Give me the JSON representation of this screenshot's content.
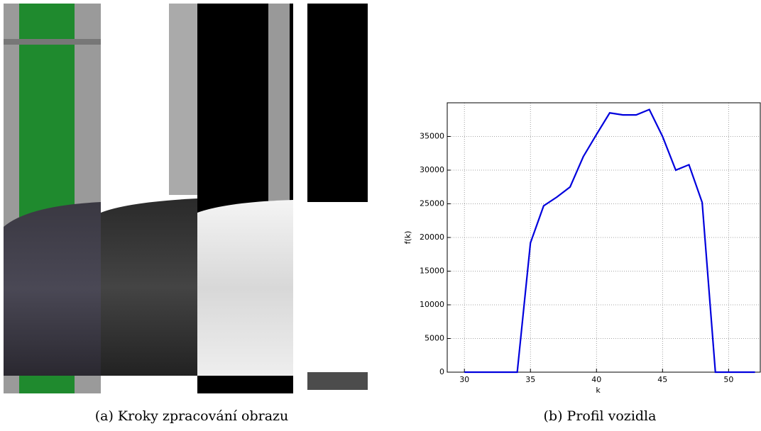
{
  "figure": {
    "caption_a": "(a) Kroky zpracování obrazu",
    "caption_b": "(b) Profil vozidla"
  },
  "chart_data": {
    "type": "line",
    "x_label": "k",
    "y_label": "f(k)",
    "x": [
      30,
      31,
      32,
      33,
      34,
      35,
      36,
      37,
      38,
      39,
      40,
      41,
      42,
      43,
      44,
      45,
      46,
      47,
      48,
      49,
      50,
      51,
      52
    ],
    "series": [
      {
        "name": "f(k)",
        "color": "#0000dd",
        "values": [
          0,
          0,
          0,
          0,
          0,
          19200,
          24700,
          26000,
          27500,
          32000,
          35300,
          38500,
          38200,
          38200,
          39000,
          35000,
          30000,
          30800,
          25200,
          0,
          0,
          0,
          0
        ]
      }
    ],
    "xlim": [
      28.7,
      52.4
    ],
    "ylim": [
      0,
      40000
    ],
    "xticks": [
      30,
      35,
      40,
      45,
      50
    ],
    "yticks": [
      0,
      5000,
      10000,
      15000,
      20000,
      25000,
      30000,
      35000
    ],
    "grid": true
  }
}
